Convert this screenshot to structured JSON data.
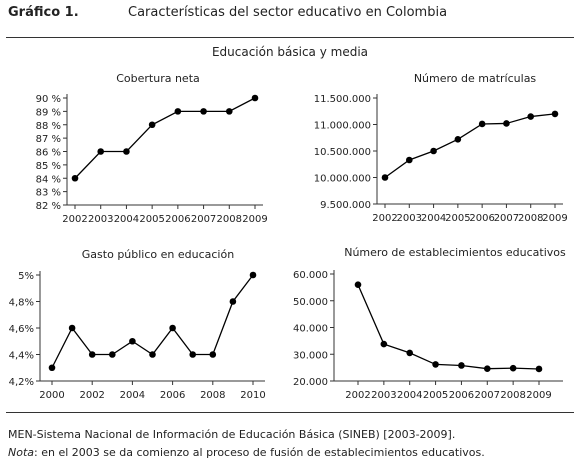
{
  "figure": {
    "label": "Gráfico 1.",
    "title": "Características del sector educativo en Colombia",
    "section": "Educación básica y media"
  },
  "source": "MEN-Sistema Nacional de Información de Educación Básica (SINEB) [2003-2009].",
  "note": {
    "label": "Nota",
    "text": ": en el 2003 se da comienzo al proceso de fusión de establecimientos educativos."
  },
  "chart_data": [
    {
      "type": "line",
      "title": "Cobertura neta",
      "x": [
        2002,
        2003,
        2004,
        2005,
        2006,
        2007,
        2008,
        2009
      ],
      "values": [
        84,
        86,
        86,
        88,
        89,
        89,
        89,
        90
      ],
      "ylim": [
        82,
        90
      ],
      "yticks": [
        82,
        83,
        84,
        85,
        86,
        87,
        88,
        89,
        90
      ],
      "ytick_labels": [
        "82 %",
        "83 %",
        "84 %",
        "85 %",
        "86 %",
        "87 %",
        "88 %",
        "89 %",
        "90 %"
      ],
      "xtick_labels": [
        "2002",
        "2003",
        "2004",
        "2005",
        "2006",
        "2007",
        "2008",
        "2009"
      ],
      "grid": false
    },
    {
      "type": "line",
      "title": "Número de matrículas",
      "x": [
        2002,
        2003,
        2004,
        2005,
        2006,
        2007,
        2008,
        2009
      ],
      "values": [
        10000000,
        10330000,
        10500000,
        10720000,
        11010000,
        11020000,
        11150000,
        11200000
      ],
      "ylim": [
        9500000,
        11500000
      ],
      "yticks": [
        9500000,
        10000000,
        10500000,
        11000000,
        11500000
      ],
      "ytick_labels": [
        "9.500.000",
        "10.000.000",
        "10.500.000",
        "11.000.000",
        "11.500.000"
      ],
      "xtick_labels": [
        "2002",
        "2003",
        "2004",
        "2005",
        "2006",
        "2007",
        "2008",
        "2009"
      ],
      "grid": false
    },
    {
      "type": "line",
      "title": "Gasto público en educación",
      "x": [
        2000,
        2001,
        2002,
        2003,
        2004,
        2005,
        2006,
        2007,
        2008,
        2009,
        2010
      ],
      "values": [
        4.3,
        4.6,
        4.4,
        4.4,
        4.5,
        4.4,
        4.6,
        4.4,
        4.4,
        4.8,
        5.0
      ],
      "ylim": [
        4.2,
        5.0
      ],
      "yticks": [
        4.2,
        4.4,
        4.6,
        4.8,
        5.0
      ],
      "ytick_labels": [
        "4,2%",
        "4,4%",
        "4,6%",
        "4,8%",
        "5%"
      ],
      "xticks": [
        2000,
        2002,
        2004,
        2006,
        2008,
        2010
      ],
      "xtick_labels": [
        "2000",
        "2002",
        "2004",
        "2006",
        "2008",
        "2010"
      ],
      "grid": false
    },
    {
      "type": "line",
      "title": "Número de establecimientos educativos",
      "x": [
        2002,
        2003,
        2004,
        2005,
        2006,
        2007,
        2008,
        2009
      ],
      "values": [
        56000,
        33800,
        30500,
        26200,
        25800,
        24600,
        24800,
        24500
      ],
      "ylim": [
        20000,
        60000
      ],
      "yticks": [
        20000,
        30000,
        40000,
        50000,
        60000
      ],
      "ytick_labels": [
        "20.000",
        "30.000",
        "40.000",
        "50.000",
        "60.000"
      ],
      "xtick_labels": [
        "2002",
        "2003",
        "2004",
        "2005",
        "2006",
        "2007",
        "2008",
        "2009"
      ],
      "grid": false
    }
  ]
}
